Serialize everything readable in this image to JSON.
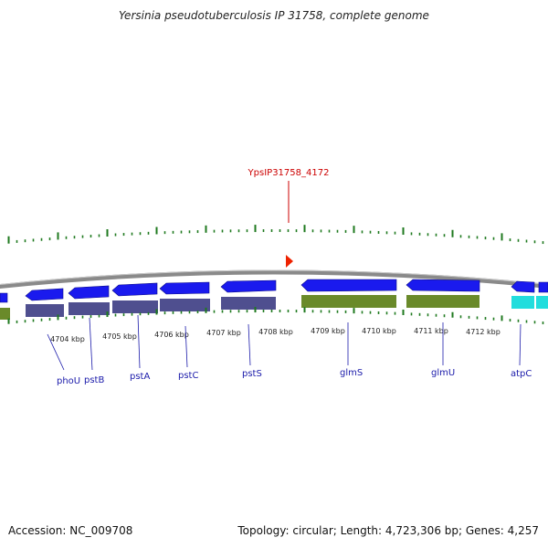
{
  "title": "Yersinia pseudotuberculosis IP 31758, complete genome",
  "accession": "Accession: NC_009708",
  "summary": "Topology: circular; Length: 4,723,306 bp; Genes: 4,257",
  "feature": {
    "label": "YpsIP31758_4172",
    "color": "#cc0000"
  },
  "colors": {
    "backbone": "#8a8a8a",
    "gene_forward": "#1a1aee",
    "cds_purple": "#4f4f8f",
    "cds_green": "#6a8a2a",
    "cds_cyan": "#22dddd",
    "ticks": "#1f7a1f",
    "gene_label": "#1a1aaa"
  },
  "kbp_labels": [
    "4704 kbp",
    "4705 kbp",
    "4706 kbp",
    "4707 kbp",
    "4708 kbp",
    "4709 kbp",
    "4710 kbp",
    "4711 kbp",
    "4712 kbp"
  ],
  "genes": [
    {
      "name": "phoU",
      "icon": "arrow-left"
    },
    {
      "name": "pstB",
      "icon": "arrow-left"
    },
    {
      "name": "pstA",
      "icon": "arrow-left"
    },
    {
      "name": "pstC",
      "icon": "arrow-left"
    },
    {
      "name": "pstS",
      "icon": "arrow-left"
    },
    {
      "name": "glmS",
      "icon": "arrow-left"
    },
    {
      "name": "glmU",
      "icon": "arrow-left"
    },
    {
      "name": "atpC",
      "icon": "arrow-left"
    }
  ]
}
